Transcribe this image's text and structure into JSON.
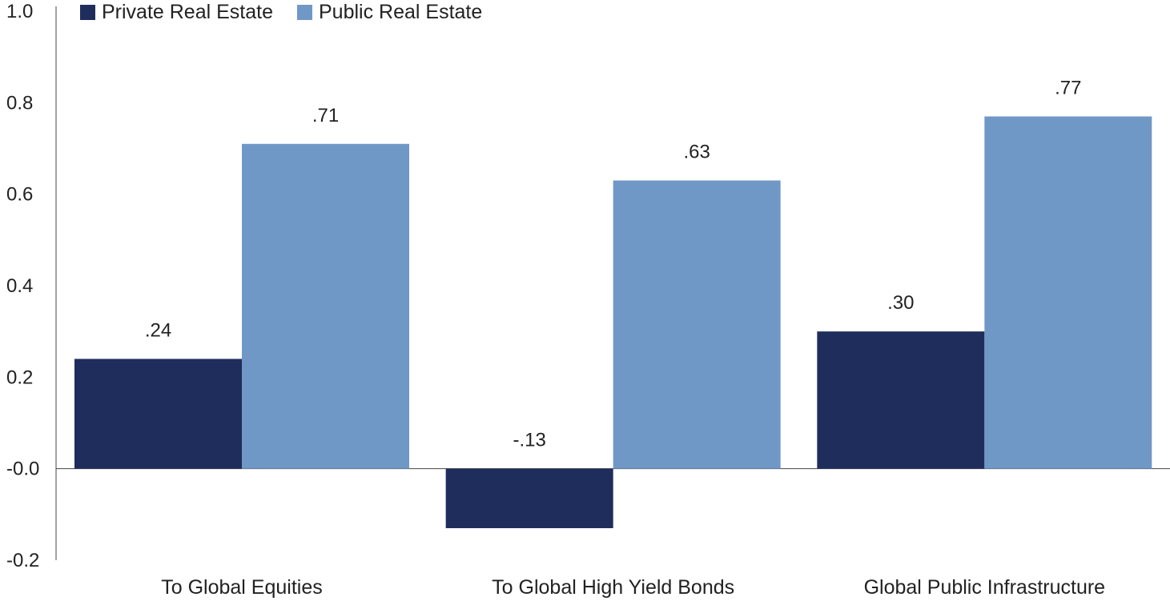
{
  "chart_data": {
    "type": "bar",
    "categories": [
      "To Global Equities",
      "To Global High Yield Bonds",
      "Global Public Infrastructure"
    ],
    "series": [
      {
        "name": "Private Real Estate",
        "color": "#1f2d5c",
        "values": [
          0.24,
          -0.13,
          0.3
        ],
        "labels": [
          ".24",
          "-.13",
          ".30"
        ]
      },
      {
        "name": "Public Real Estate",
        "color": "#7098c7",
        "values": [
          0.71,
          0.63,
          0.77
        ],
        "labels": [
          ".71",
          ".63",
          ".77"
        ]
      }
    ],
    "ylim": [
      -0.2,
      1.0
    ],
    "yticks": [
      -0.2,
      0.0,
      0.2,
      0.4,
      0.6,
      0.8,
      1.0
    ],
    "ytick_labels": [
      "-0.2",
      "-0.0",
      "0.2",
      "0.4",
      "0.6",
      "0.8",
      "1.0"
    ],
    "legend_position": "top-left",
    "grid": false
  }
}
